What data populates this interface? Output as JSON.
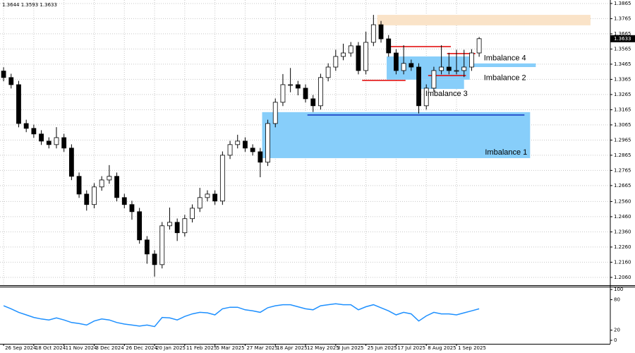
{
  "chart_data": [
    {
      "type": "candlestick",
      "header": "1.3644 1.3593 1.3633",
      "x": [
        0,
        4,
        8,
        12,
        16,
        20,
        24,
        28,
        32,
        36,
        40,
        44,
        48,
        52,
        56,
        60,
        64,
        68,
        72,
        76,
        80,
        84,
        88,
        92,
        96,
        100,
        104,
        108,
        112,
        116,
        120,
        124,
        128,
        132,
        136,
        140,
        144,
        148,
        152,
        156,
        160,
        164,
        168,
        172,
        176,
        180,
        184,
        188,
        192,
        196,
        200,
        204,
        208,
        212,
        216,
        220,
        224,
        228,
        232,
        236,
        240,
        244,
        248,
        252
      ],
      "open": [
        1.342,
        1.3377,
        1.333,
        1.3074,
        1.3042,
        1.3005,
        1.2958,
        1.2935,
        1.2981,
        1.2912,
        1.2726,
        1.2609,
        1.254,
        1.2656,
        1.2702,
        1.2726,
        1.2586,
        1.254,
        1.2493,
        1.2307,
        1.2214,
        1.2144,
        1.24,
        1.2423,
        1.2354,
        1.2447,
        1.2516,
        1.2586,
        1.2609,
        1.2563,
        1.2865,
        1.2935,
        1.2958,
        1.2912,
        1.2888,
        1.2819,
        1.3074,
        1.3214,
        1.333,
        1.333,
        1.3307,
        1.3237,
        1.3191,
        1.3377,
        1.3446,
        1.3516,
        1.3539,
        1.3586,
        1.3423,
        1.3609,
        1.3725,
        1.3632,
        1.3539,
        1.3423,
        1.347,
        1.3446,
        1.3191,
        1.3307,
        1.3423,
        1.3446,
        1.3423,
        1.3423,
        1.3446,
        1.3539
      ],
      "high": [
        1.3445,
        1.3402,
        1.3355,
        1.3099,
        1.3067,
        1.303,
        1.2983,
        1.305,
        1.3006,
        1.2937,
        1.2751,
        1.2634,
        1.2681,
        1.2727,
        1.28,
        1.2751,
        1.2611,
        1.2565,
        1.2518,
        1.2332,
        1.2239,
        1.2425,
        1.252,
        1.2448,
        1.2472,
        1.2541,
        1.265,
        1.2634,
        1.2634,
        1.289,
        1.296,
        1.3,
        1.2983,
        1.2937,
        1.2913,
        1.3099,
        1.3239,
        1.34,
        1.344,
        1.3355,
        1.3332,
        1.3262,
        1.3402,
        1.3471,
        1.356,
        1.36,
        1.3611,
        1.3611,
        1.368,
        1.379,
        1.375,
        1.3657,
        1.3564,
        1.359,
        1.3495,
        1.3471,
        1.3332,
        1.3448,
        1.359,
        1.354,
        1.356,
        1.356,
        1.3564,
        1.3644
      ],
      "low": [
        1.3352,
        1.3305,
        1.3049,
        1.3017,
        1.298,
        1.2933,
        1.291,
        1.291,
        1.2887,
        1.2701,
        1.2584,
        1.25,
        1.2515,
        1.2631,
        1.2677,
        1.2561,
        1.2515,
        1.244,
        1.2282,
        1.215,
        1.2065,
        1.2119,
        1.2375,
        1.23,
        1.2329,
        1.2422,
        1.2491,
        1.2561,
        1.2538,
        1.2538,
        1.284,
        1.291,
        1.2887,
        1.2863,
        1.272,
        1.2794,
        1.3049,
        1.3189,
        1.328,
        1.326,
        1.3212,
        1.315,
        1.3166,
        1.3352,
        1.3421,
        1.3491,
        1.3514,
        1.3398,
        1.3398,
        1.3584,
        1.3607,
        1.3514,
        1.3398,
        1.3398,
        1.3421,
        1.314,
        1.3166,
        1.3282,
        1.3398,
        1.3398,
        1.3398,
        1.338,
        1.3421,
        1.3514
      ],
      "close": [
        1.3377,
        1.333,
        1.3074,
        1.3042,
        1.3005,
        1.2958,
        1.2935,
        1.2981,
        1.2912,
        1.2726,
        1.2609,
        1.254,
        1.2656,
        1.2702,
        1.2726,
        1.2586,
        1.254,
        1.2493,
        1.2307,
        1.2214,
        1.2144,
        1.24,
        1.2423,
        1.2354,
        1.2447,
        1.2516,
        1.2586,
        1.2609,
        1.2563,
        1.2865,
        1.2935,
        1.2958,
        1.2912,
        1.2888,
        1.2819,
        1.3074,
        1.3214,
        1.333,
        1.333,
        1.3307,
        1.3237,
        1.3191,
        1.3377,
        1.3446,
        1.3516,
        1.3539,
        1.3586,
        1.3423,
        1.3609,
        1.3725,
        1.3632,
        1.3539,
        1.3423,
        1.347,
        1.3446,
        1.3191,
        1.3307,
        1.3423,
        1.3446,
        1.3423,
        1.3423,
        1.3446,
        1.3539,
        1.3633
      ],
      "xlim": [
        -1.9,
        321.5
      ],
      "ylim": [
        1.2013,
        1.3888
      ],
      "xticks": [
        {
          "value": 0,
          "label": "26 Sep 2024"
        },
        {
          "value": 16,
          "label": "18 Oct 2024"
        },
        {
          "value": 32,
          "label": "11 Nov 2024"
        },
        {
          "value": 48,
          "label": "3 Dec 2024"
        },
        {
          "value": 64,
          "label": "26 Dec 2024"
        },
        {
          "value": 80,
          "label": "20 Jan 2025"
        },
        {
          "value": 96,
          "label": "11 Feb 2025"
        },
        {
          "value": 112,
          "label": "5 Mar 2025"
        },
        {
          "value": 128,
          "label": "27 Mar 2025"
        },
        {
          "value": 144,
          "label": "18 Apr 2025"
        },
        {
          "value": 160,
          "label": "12 May 2025"
        },
        {
          "value": 176,
          "label": "3 Jun 2025"
        },
        {
          "value": 192,
          "label": "25 Jun 2025"
        },
        {
          "value": 208,
          "label": "17 Jul 2025"
        },
        {
          "value": 224,
          "label": "8 Aug 2025"
        },
        {
          "value": 240,
          "label": "1 Sep 2025"
        }
      ],
      "yticks": [
        1.3865,
        1.3765,
        1.3665,
        1.3565,
        1.3465,
        1.3365,
        1.3265,
        1.3165,
        1.3065,
        1.2965,
        1.2865,
        1.2765,
        1.2665,
        {
          "value": 1.256,
          "label": "1.2560"
        },
        {
          "value": 1.246,
          "label": "1.2460"
        },
        {
          "value": 1.236,
          "label": "1.2360"
        },
        {
          "value": 1.226,
          "label": "1.2260"
        },
        {
          "value": 1.216,
          "label": "1.2160"
        },
        {
          "value": 1.206,
          "label": "1.2060"
        }
      ],
      "grid": true,
      "zones": [
        {
          "color": "#fae3c8",
          "x": [
            198,
            311
          ],
          "y": [
            1.379,
            1.3721
          ]
        },
        {
          "label": "Imbalance 1",
          "color": "#87cefa",
          "x": [
            137,
            279
          ],
          "y": [
            1.3149,
            1.2846
          ]
        },
        {
          "label": "Imbalance 2",
          "color": "#87cefa",
          "x": [
            203,
            247
          ],
          "y": [
            1.3516,
            1.3363
          ]
        },
        {
          "label": "Imbalance 3",
          "color": "#87cefa",
          "x": [
            219,
            244
          ],
          "y": [
            1.3363,
            1.3302
          ]
        },
        {
          "label": "Imbalance 4",
          "color": "#87cefa",
          "x": [
            247,
            282
          ],
          "y": [
            1.347,
            1.3446
          ]
        }
      ],
      "levels": [
        {
          "color": "#1030c0",
          "x": [
            161,
            276
          ],
          "y": 1.313
        },
        {
          "color": "#e00000",
          "x": [
            203,
            237
          ],
          "y": 1.3581
        },
        {
          "color": "#e00000",
          "x": [
            190,
            213
          ],
          "y": 1.3358
        },
        {
          "color": "#e00000",
          "x": [
            235,
            250
          ],
          "y": 1.3535
        },
        {
          "color": "#e00000",
          "x": [
            225,
            245
          ],
          "y": 1.339
        }
      ]
    },
    {
      "type": "line",
      "color": "#1e90ff",
      "x": [
        0,
        4,
        8,
        12,
        16,
        20,
        24,
        28,
        32,
        36,
        40,
        44,
        48,
        52,
        56,
        60,
        64,
        68,
        72,
        76,
        80,
        84,
        88,
        92,
        96,
        100,
        104,
        108,
        112,
        116,
        120,
        124,
        128,
        132,
        136,
        140,
        144,
        148,
        152,
        156,
        160,
        164,
        168,
        172,
        176,
        180,
        184,
        188,
        192,
        196,
        200,
        204,
        208,
        212,
        216,
        220,
        224,
        228,
        232,
        236,
        240,
        244,
        248,
        252
      ],
      "values": [
        68,
        62,
        55,
        50,
        45,
        42,
        40,
        44,
        40,
        35,
        33,
        30,
        38,
        42,
        40,
        35,
        32,
        30,
        28,
        30,
        27,
        45,
        44,
        40,
        47,
        52,
        55,
        54,
        50,
        62,
        65,
        65,
        60,
        58,
        55,
        64,
        68,
        70,
        70,
        66,
        62,
        60,
        68,
        70,
        72,
        70,
        70,
        60,
        66,
        70,
        64,
        58,
        50,
        55,
        52,
        38,
        48,
        55,
        52,
        52,
        50,
        54,
        58,
        62
      ],
      "xlim": [
        -1.9,
        321.5
      ],
      "ylim": [
        -6.9,
        104.2
      ],
      "yticks": [
        100,
        80,
        20,
        0
      ]
    }
  ]
}
